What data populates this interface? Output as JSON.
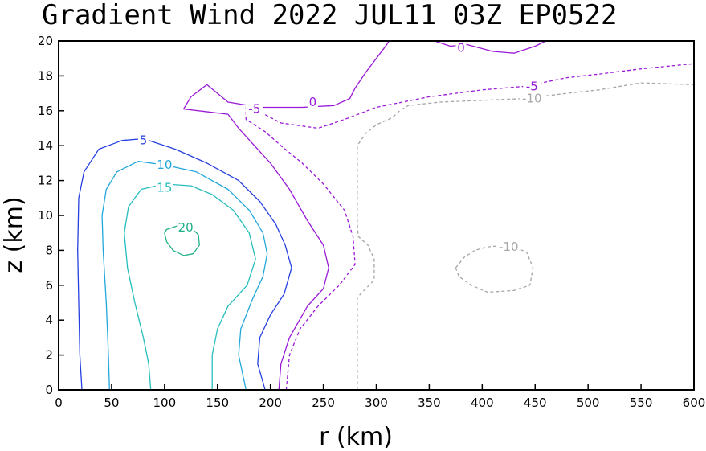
{
  "chart_data": {
    "type": "contour",
    "title": "Gradient Wind 2022 JUL11 03Z   EP0522",
    "xlabel": "r (km)",
    "ylabel": "z (km)",
    "xlim": [
      0,
      600
    ],
    "ylim": [
      0,
      20
    ],
    "xticks": [
      0,
      50,
      100,
      150,
      200,
      250,
      300,
      350,
      400,
      450,
      500,
      550,
      600
    ],
    "yticks": [
      0,
      2,
      4,
      6,
      8,
      10,
      12,
      14,
      16,
      18,
      20
    ],
    "contours": [
      {
        "level": 20,
        "label": "20",
        "color": "#20b08a",
        "dashed": false,
        "points": [
          [
            100,
            9.0
          ],
          [
            102,
            8.5
          ],
          [
            108,
            8.0
          ],
          [
            118,
            7.7
          ],
          [
            127,
            7.8
          ],
          [
            133,
            8.3
          ],
          [
            132,
            8.9
          ],
          [
            125,
            9.3
          ],
          [
            112,
            9.4
          ],
          [
            102,
            9.2
          ],
          [
            100,
            9.0
          ]
        ],
        "labels": [
          {
            "x": 120,
            "y": 9.3
          }
        ]
      },
      {
        "level": 15,
        "label": "15",
        "color": "#26bdbd",
        "dashed": false,
        "points": [
          [
            87,
            0
          ],
          [
            85,
            1.5
          ],
          [
            80,
            3
          ],
          [
            72,
            5
          ],
          [
            65,
            7
          ],
          [
            62,
            9
          ],
          [
            66,
            10.5
          ],
          [
            78,
            11.5
          ],
          [
            100,
            11.8
          ],
          [
            125,
            11.7
          ],
          [
            145,
            11.2
          ],
          [
            165,
            10.3
          ],
          [
            180,
            9.0
          ],
          [
            186,
            7.5
          ],
          [
            178,
            6.0
          ],
          [
            160,
            4.8
          ],
          [
            150,
            3.5
          ],
          [
            145,
            2
          ],
          [
            145,
            0
          ]
        ],
        "labels": [
          {
            "x": 100,
            "y": 11.6
          }
        ]
      },
      {
        "level": 10,
        "label": "10",
        "color": "#22a8dd",
        "dashed": false,
        "points": [
          [
            48,
            0
          ],
          [
            47,
            2
          ],
          [
            45,
            5
          ],
          [
            42,
            8
          ],
          [
            41,
            10
          ],
          [
            45,
            11.5
          ],
          [
            55,
            12.5
          ],
          [
            75,
            13.1
          ],
          [
            100,
            12.9
          ],
          [
            130,
            12.5
          ],
          [
            160,
            11.5
          ],
          [
            180,
            10.3
          ],
          [
            193,
            9.0
          ],
          [
            197,
            7.8
          ],
          [
            193,
            6.5
          ],
          [
            183,
            5.2
          ],
          [
            172,
            3.5
          ],
          [
            170,
            2
          ],
          [
            177,
            0
          ]
        ],
        "labels": [
          {
            "x": 100,
            "y": 12.9
          }
        ]
      },
      {
        "level": 5,
        "label": "5",
        "color": "#2640e0",
        "dashed": false,
        "points": [
          [
            22,
            0
          ],
          [
            20,
            2
          ],
          [
            19,
            5
          ],
          [
            18,
            8
          ],
          [
            19,
            11
          ],
          [
            24,
            12.5
          ],
          [
            38,
            13.8
          ],
          [
            60,
            14.3
          ],
          [
            80,
            14.4
          ],
          [
            110,
            13.8
          ],
          [
            140,
            13.0
          ],
          [
            170,
            12.0
          ],
          [
            190,
            10.8
          ],
          [
            205,
            9.5
          ],
          [
            214,
            8.3
          ],
          [
            220,
            7.0
          ],
          [
            213,
            5.5
          ],
          [
            200,
            4.3
          ],
          [
            190,
            3.0
          ],
          [
            188,
            1.5
          ],
          [
            195,
            0
          ]
        ],
        "labels": [
          {
            "x": 80,
            "y": 14.3
          }
        ]
      },
      {
        "level": 0,
        "label": "0",
        "color": "#9a19d8",
        "dashed": false,
        "points": [
          [
            208,
            0
          ],
          [
            210,
            1.5
          ],
          [
            218,
            3.0
          ],
          [
            235,
            4.8
          ],
          [
            250,
            5.8
          ],
          [
            255,
            7.0
          ],
          [
            250,
            8.3
          ],
          [
            235,
            9.7
          ],
          [
            218,
            11.5
          ],
          [
            200,
            13.0
          ],
          [
            182,
            14.2
          ],
          [
            170,
            15.0
          ],
          [
            160,
            15.8
          ],
          [
            118,
            16.1
          ],
          [
            125,
            16.8
          ],
          [
            140,
            17.5
          ],
          [
            160,
            16.5
          ],
          [
            190,
            16.2
          ],
          [
            230,
            16.2
          ],
          [
            260,
            16.3
          ],
          [
            275,
            16.7
          ],
          [
            280,
            17.3
          ],
          [
            290,
            18.2
          ],
          [
            300,
            19.0
          ],
          [
            310,
            19.8
          ],
          [
            312,
            20
          ]
        ],
        "labels": [
          {
            "x": 240,
            "y": 16.5
          }
        ]
      },
      {
        "level": 0,
        "label": "0",
        "color": "#9a19d8",
        "dashed": false,
        "points": [
          [
            355,
            20
          ],
          [
            370,
            19.7
          ],
          [
            385,
            19.8
          ],
          [
            410,
            19.4
          ],
          [
            430,
            19.3
          ],
          [
            450,
            19.7
          ],
          [
            460,
            20
          ]
        ],
        "labels": [
          {
            "x": 380,
            "y": 19.6
          }
        ]
      },
      {
        "level": -5,
        "label": "-5",
        "color": "#9a19d8",
        "dashed": true,
        "points": [
          [
            215,
            0
          ],
          [
            218,
            2
          ],
          [
            228,
            3.5
          ],
          [
            245,
            4.8
          ],
          [
            265,
            6.0
          ],
          [
            280,
            7.2
          ],
          [
            278,
            8.8
          ],
          [
            270,
            10.3
          ],
          [
            250,
            11.8
          ],
          [
            230,
            13.0
          ],
          [
            210,
            14.0
          ],
          [
            195,
            14.8
          ],
          [
            185,
            15.2
          ],
          [
            177,
            15.5
          ],
          [
            177,
            16.2
          ],
          [
            188,
            16.0
          ],
          [
            210,
            15.3
          ],
          [
            245,
            15.0
          ],
          [
            270,
            15.5
          ],
          [
            300,
            16.2
          ],
          [
            350,
            16.8
          ],
          [
            400,
            17.2
          ],
          [
            440,
            17.4
          ],
          [
            480,
            17.9
          ],
          [
            510,
            18.1
          ],
          [
            550,
            18.4
          ],
          [
            600,
            18.7
          ]
        ],
        "labels": [
          {
            "x": 185,
            "y": 16.1
          },
          {
            "x": 447,
            "y": 17.4
          }
        ]
      },
      {
        "level": -10,
        "label": "-10",
        "color": "#a6a6a6",
        "dashed": true,
        "points": [
          [
            282,
            0
          ],
          [
            282,
            2
          ],
          [
            282,
            4
          ],
          [
            282,
            5.3
          ],
          [
            290,
            5.8
          ],
          [
            298,
            6.3
          ],
          [
            298,
            7.5
          ],
          [
            292,
            8.3
          ],
          [
            283,
            8.8
          ],
          [
            282,
            9.5
          ],
          [
            282,
            11
          ],
          [
            282,
            13
          ],
          [
            282,
            14
          ],
          [
            290,
            14.7
          ],
          [
            300,
            15.2
          ],
          [
            315,
            15.6
          ],
          [
            322,
            16.0
          ],
          [
            330,
            16.3
          ],
          [
            360,
            16.5
          ],
          [
            400,
            16.6
          ],
          [
            440,
            16.7
          ],
          [
            480,
            17.0
          ],
          [
            510,
            17.2
          ],
          [
            550,
            17.6
          ],
          [
            600,
            17.5
          ]
        ],
        "labels": [
          {
            "x": 447,
            "y": 16.7
          }
        ]
      },
      {
        "level": -10,
        "label": "-10",
        "color": "#a6a6a6",
        "dashed": true,
        "points": [
          [
            375,
            7.0
          ],
          [
            383,
            7.6
          ],
          [
            393,
            8.0
          ],
          [
            405,
            8.2
          ],
          [
            425,
            8.3
          ],
          [
            442,
            7.9
          ],
          [
            448,
            7.0
          ],
          [
            445,
            6.0
          ],
          [
            430,
            5.7
          ],
          [
            405,
            5.6
          ],
          [
            390,
            6.0
          ],
          [
            378,
            6.5
          ],
          [
            375,
            7.0
          ]
        ],
        "labels": [
          {
            "x": 425,
            "y": 8.2
          }
        ]
      }
    ]
  }
}
